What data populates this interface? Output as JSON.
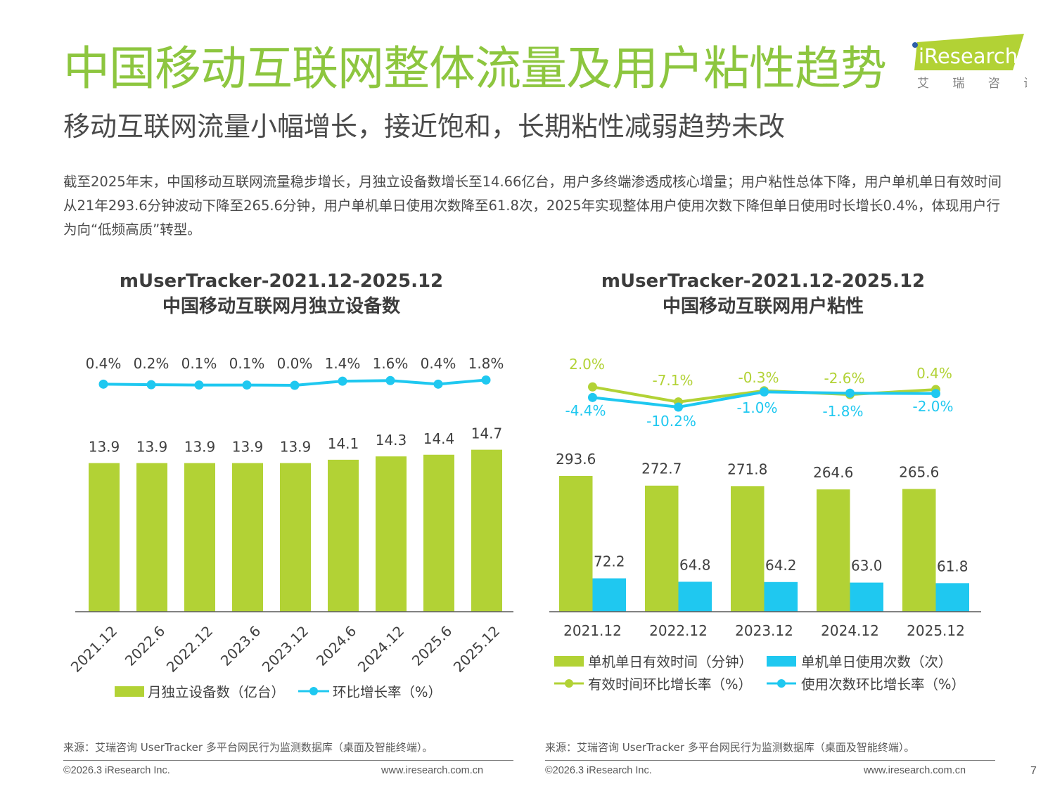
{
  "header": {
    "title": "中国移动互联网整体流量及用户粘性趋势",
    "subtitle": "移动互联网流量小幅增长，接近饱和，长期粘性减弱趋势未改",
    "summary": "截至2025年末，中国移动互联网流量稳步增长，月独立设备数增长至14.66亿台，用户多终端渗透成核心增量；用户粘性总体下降，用户单机单日有效时间从21年293.6分钟波动下降至265.6分钟，用户单机单日使用次数降至61.8次，2025年实现整体用户使用次数下降但单日使用时长增长0.4%，体现用户行为向“低频高质”转型。"
  },
  "logo": {
    "brand": "iResearch",
    "cn": "艾 瑞 咨 询",
    "colors": {
      "green": "#b2d235",
      "blue": "#2e5fa8",
      "grey": "#808080"
    }
  },
  "colors": {
    "title_green": "#8dc63f",
    "bar_green": "#b2d235",
    "bar_blue": "#1fc8f0",
    "text": "#404040",
    "axis": "#595959"
  },
  "chart_data": [
    {
      "type": "bar",
      "title_line1": "mUserTracker-2021.12-2025.12",
      "title_line2": "中国移动互联网月独立设备数",
      "categories": [
        "2021.12",
        "2022.6",
        "2022.12",
        "2023.6",
        "2023.12",
        "2024.6",
        "2024.12",
        "2025.6",
        "2025.12"
      ],
      "series": [
        {
          "name": "月独立设备数（亿台）",
          "kind": "bar",
          "color": "#b2d235",
          "values": [
            13.9,
            13.9,
            13.9,
            13.9,
            13.9,
            14.1,
            14.3,
            14.4,
            14.7
          ],
          "labels": [
            "13.9",
            "13.9",
            "13.9",
            "13.9",
            "13.9",
            "14.1",
            "14.3",
            "14.4",
            "14.7"
          ]
        },
        {
          "name": "环比增长率（%）",
          "kind": "line",
          "color": "#1fc8f0",
          "values": [
            0.4,
            0.2,
            0.1,
            0.1,
            0.0,
            1.4,
            1.6,
            0.4,
            1.8
          ],
          "labels": [
            "0.4%",
            "0.2%",
            "0.1%",
            "0.1%",
            "0.0%",
            "1.4%",
            "1.6%",
            "0.4%",
            "1.8%"
          ]
        }
      ],
      "ylim": [
        5,
        15
      ],
      "line_ylim": [
        -10,
        10
      ],
      "xlabel": "",
      "ylabel": "",
      "grid": false,
      "legend": "bottom"
    },
    {
      "type": "bar",
      "title_line1": "mUserTracker-2021.12-2025.12",
      "title_line2": "中国移动互联网用户粘性",
      "categories": [
        "2021.12",
        "2022.12",
        "2023.12",
        "2024.12",
        "2025.12"
      ],
      "series": [
        {
          "name": "单机单日有效时间（分钟）",
          "kind": "bar",
          "color": "#b2d235",
          "values": [
            293.6,
            272.7,
            271.8,
            264.6,
            265.6
          ],
          "labels": [
            "293.6",
            "272.7",
            "271.8",
            "264.6",
            "265.6"
          ]
        },
        {
          "name": "单机单日使用次数（次）",
          "kind": "bar",
          "color": "#1fc8f0",
          "values": [
            72.2,
            64.8,
            64.2,
            63.0,
            61.8
          ],
          "labels": [
            "72.2",
            "64.8",
            "64.2",
            "63.0",
            "61.8"
          ]
        },
        {
          "name": "有效时间环比增长率（%）",
          "kind": "line",
          "color": "#b2d235",
          "values": [
            2.0,
            -7.1,
            -0.3,
            -2.6,
            0.4
          ],
          "labels": [
            "2.0%",
            "-7.1%",
            "-0.3%",
            "-2.6%",
            "0.4%"
          ]
        },
        {
          "name": "使用次数环比增长率（%）",
          "kind": "line",
          "color": "#1fc8f0",
          "values": [
            -4.4,
            -10.2,
            -1.0,
            -1.8,
            -2.0
          ],
          "labels": [
            "-4.4%",
            "-10.2%",
            "-1.0%",
            "-1.8%",
            "-2.0%"
          ]
        }
      ],
      "ylim": [
        0,
        300
      ],
      "line_ylim": [
        -15,
        5
      ],
      "xlabel": "",
      "ylabel": "",
      "grid": false,
      "legend": "bottom"
    }
  ],
  "footer": {
    "source": "来源：艾瑞咨询 UserTracker 多平台网民行为监测数据库（桌面及智能终端）。",
    "copyright": "©2026.3 iResearch Inc.",
    "website": "www.iresearch.com.cn",
    "page": "7"
  }
}
